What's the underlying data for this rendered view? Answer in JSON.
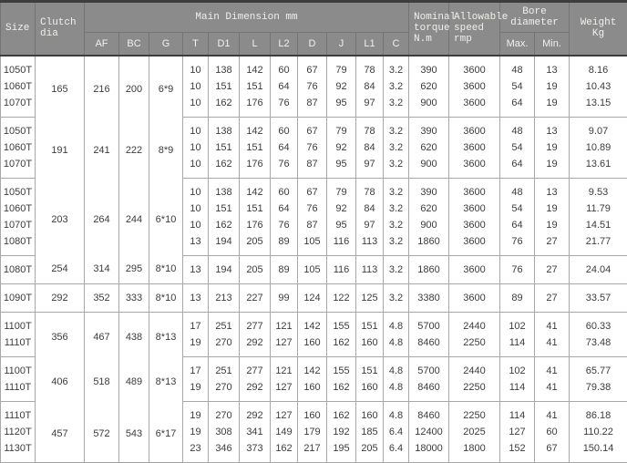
{
  "table": {
    "header": {
      "size": "Size",
      "clutch_dia": "Clutch\ndia",
      "main_dimension": "Main Dimension  mm",
      "sub_columns": [
        "AF",
        "BC",
        "G",
        "T",
        "D1",
        "L",
        "L2",
        "D",
        "J",
        "L1",
        "C"
      ],
      "nominal_torque": "Nominal\ntorque\nN.m",
      "allowable_speed": "Allowable\nspeed\nrmp",
      "bore_diameter": "Bore diameter",
      "bore_sub": [
        "Max.",
        "Min."
      ],
      "weight": "Weight\nKg"
    },
    "groups": [
      {
        "dia": "165",
        "af": "216",
        "bc": "200",
        "g": "6*9",
        "rows": [
          {
            "size": "1050T",
            "t": "10",
            "d1": "138",
            "l": "142",
            "l2": "60",
            "d": "67",
            "j": "79",
            "l1": "78",
            "c": "3.2",
            "torque": "390",
            "speed": "3600",
            "max": "48",
            "min": "13",
            "weight": "8.16"
          },
          {
            "size": "1060T",
            "t": "10",
            "d1": "151",
            "l": "151",
            "l2": "64",
            "d": "76",
            "j": "92",
            "l1": "84",
            "c": "3.2",
            "torque": "620",
            "speed": "3600",
            "max": "54",
            "min": "19",
            "weight": "10.43"
          },
          {
            "size": "1070T",
            "t": "10",
            "d1": "162",
            "l": "176",
            "l2": "76",
            "d": "87",
            "j": "95",
            "l1": "97",
            "c": "3.2",
            "torque": "900",
            "speed": "3600",
            "max": "64",
            "min": "19",
            "weight": "13.15"
          }
        ]
      },
      {
        "dia": "191",
        "af": "241",
        "bc": "222",
        "g": "8*9",
        "rows": [
          {
            "size": "1050T",
            "t": "10",
            "d1": "138",
            "l": "142",
            "l2": "60",
            "d": "67",
            "j": "79",
            "l1": "78",
            "c": "3.2",
            "torque": "390",
            "speed": "3600",
            "max": "48",
            "min": "13",
            "weight": "9.07"
          },
          {
            "size": "1060T",
            "t": "10",
            "d1": "151",
            "l": "151",
            "l2": "64",
            "d": "76",
            "j": "92",
            "l1": "84",
            "c": "3.2",
            "torque": "620",
            "speed": "3600",
            "max": "54",
            "min": "19",
            "weight": "10.89"
          },
          {
            "size": "1070T",
            "t": "10",
            "d1": "162",
            "l": "176",
            "l2": "76",
            "d": "87",
            "j": "95",
            "l1": "97",
            "c": "3.2",
            "torque": "900",
            "speed": "3600",
            "max": "64",
            "min": "19",
            "weight": "13.61"
          }
        ]
      },
      {
        "dia": "203",
        "af": "264",
        "bc": "244",
        "g": "6*10",
        "rows": [
          {
            "size": "1050T",
            "t": "10",
            "d1": "138",
            "l": "142",
            "l2": "60",
            "d": "67",
            "j": "79",
            "l1": "78",
            "c": "3.2",
            "torque": "390",
            "speed": "3600",
            "max": "48",
            "min": "13",
            "weight": "9.53"
          },
          {
            "size": "1060T",
            "t": "10",
            "d1": "151",
            "l": "151",
            "l2": "64",
            "d": "76",
            "j": "92",
            "l1": "84",
            "c": "3.2",
            "torque": "620",
            "speed": "3600",
            "max": "54",
            "min": "19",
            "weight": "11.79"
          },
          {
            "size": "1070T",
            "t": "10",
            "d1": "162",
            "l": "176",
            "l2": "76",
            "d": "87",
            "j": "95",
            "l1": "97",
            "c": "3.2",
            "torque": "900",
            "speed": "3600",
            "max": "64",
            "min": "19",
            "weight": "14.51"
          },
          {
            "size": "1080T",
            "t": "13",
            "d1": "194",
            "l": "205",
            "l2": "89",
            "d": "105",
            "j": "116",
            "l1": "113",
            "c": "3.2",
            "torque": "1860",
            "speed": "3600",
            "max": "76",
            "min": "27",
            "weight": "21.77"
          }
        ]
      },
      {
        "dia": "254",
        "af": "314",
        "bc": "295",
        "g": "8*10",
        "rows": [
          {
            "size": "1080T",
            "t": "13",
            "d1": "194",
            "l": "205",
            "l2": "89",
            "d": "105",
            "j": "116",
            "l1": "113",
            "c": "3.2",
            "torque": "1860",
            "speed": "3600",
            "max": "76",
            "min": "27",
            "weight": "24.04"
          }
        ]
      },
      {
        "dia": "292",
        "af": "352",
        "bc": "333",
        "g": "8*10",
        "rows": [
          {
            "size": "1090T",
            "t": "13",
            "d1": "213",
            "l": "227",
            "l2": "99",
            "d": "124",
            "j": "122",
            "l1": "125",
            "c": "3.2",
            "torque": "3380",
            "speed": "3600",
            "max": "89",
            "min": "27",
            "weight": "33.57"
          }
        ]
      },
      {
        "dia": "356",
        "af": "467",
        "bc": "438",
        "g": "8*13",
        "rows": [
          {
            "size": "1100T",
            "t": "17",
            "d1": "251",
            "l": "277",
            "l2": "121",
            "d": "142",
            "j": "155",
            "l1": "151",
            "c": "4.8",
            "torque": "5700",
            "speed": "2440",
            "max": "102",
            "min": "41",
            "weight": "60.33"
          },
          {
            "size": "1110T",
            "t": "19",
            "d1": "270",
            "l": "292",
            "l2": "127",
            "d": "160",
            "j": "162",
            "l1": "160",
            "c": "4.8",
            "torque": "8460",
            "speed": "2250",
            "max": "114",
            "min": "41",
            "weight": "73.48"
          }
        ]
      },
      {
        "dia": "406",
        "af": "518",
        "bc": "489",
        "g": "8*13",
        "rows": [
          {
            "size": "1100T",
            "t": "17",
            "d1": "251",
            "l": "277",
            "l2": "121",
            "d": "142",
            "j": "155",
            "l1": "151",
            "c": "4.8",
            "torque": "5700",
            "speed": "2440",
            "max": "102",
            "min": "41",
            "weight": "65.77"
          },
          {
            "size": "1110T",
            "t": "19",
            "d1": "270",
            "l": "292",
            "l2": "127",
            "d": "160",
            "j": "162",
            "l1": "160",
            "c": "4.8",
            "torque": "8460",
            "speed": "2250",
            "max": "114",
            "min": "41",
            "weight": "79.38"
          }
        ]
      },
      {
        "dia": "457",
        "af": "572",
        "bc": "543",
        "g": "6*17",
        "rows": [
          {
            "size": "1110T",
            "t": "19",
            "d1": "270",
            "l": "292",
            "l2": "127",
            "d": "160",
            "j": "162",
            "l1": "160",
            "c": "4.8",
            "torque": "8460",
            "speed": "2250",
            "max": "114",
            "min": "41",
            "weight": "86.18"
          },
          {
            "size": "1120T",
            "t": "19",
            "d1": "308",
            "l": "341",
            "l2": "149",
            "d": "179",
            "j": "192",
            "l1": "185",
            "c": "6.4",
            "torque": "12400",
            "speed": "2025",
            "max": "127",
            "min": "60",
            "weight": "110.22"
          },
          {
            "size": "1130T",
            "t": "23",
            "d1": "346",
            "l": "373",
            "l2": "162",
            "d": "217",
            "j": "195",
            "l1": "205",
            "c": "6.4",
            "torque": "18000",
            "speed": "1800",
            "max": "152",
            "min": "67",
            "weight": "150.14"
          }
        ]
      }
    ]
  },
  "colors": {
    "header_bg": "#8b8b8b",
    "header_text": "#f2f0ec",
    "header_grid": "#747474",
    "body_grid": "#a8a8a8",
    "body_text": "#3c3c3c",
    "top_border": "#3d3d3d",
    "body_bg": "#ffffff"
  }
}
